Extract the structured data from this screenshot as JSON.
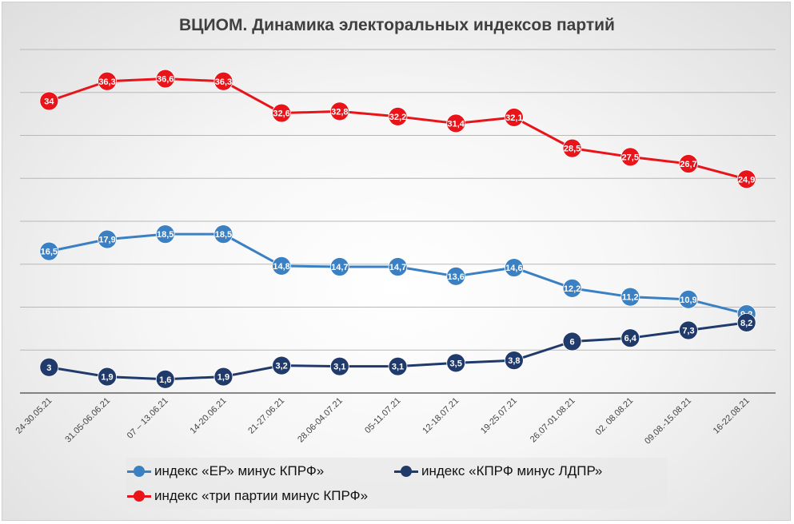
{
  "chart_data": {
    "type": "line",
    "title": "ВЦИОМ. Динамика электоральных индексов партий",
    "categories": [
      "24-30.05.21",
      "31.05-06.06.21",
      "07 – 13.06.21",
      "14-20.06.21",
      "21-27.06.21",
      "28.06-04.07.21",
      "05-11.07.21",
      "12-18.07.21",
      "19-25.07.21",
      "26.07-01.08.21",
      "02. 08.08.21",
      "09.08.-15.08.21",
      "16-22.08.21"
    ],
    "ylim": [
      0,
      40
    ],
    "grid": true,
    "legend_position": "bottom",
    "series": [
      {
        "name": "индекс «ЕР» минус КПРФ»",
        "color": "#3a80c2",
        "values": [
          16.5,
          17.9,
          18.5,
          18.5,
          14.8,
          14.7,
          14.7,
          13.6,
          14.6,
          12.2,
          11.2,
          10.9,
          9.2
        ],
        "labels": [
          "16,5",
          "17,9",
          "18,5",
          "18,5",
          "14,8",
          "14,7",
          "14,7",
          "13,6",
          "14,6",
          "12,2",
          "11,2",
          "10,9",
          "9,2"
        ]
      },
      {
        "name": "индекс «КПРФ минус ЛДПР»",
        "color": "#1f3a6b",
        "values": [
          3,
          1.9,
          1.6,
          1.9,
          3.2,
          3.1,
          3.1,
          3.5,
          3.8,
          6,
          6.4,
          7.3,
          8.2
        ],
        "labels": [
          "3",
          "1,9",
          "1,6",
          "1,9",
          "3,2",
          "3,1",
          "3,1",
          "3,5",
          "3,8",
          "6",
          "6,4",
          "7,3",
          "8,2"
        ]
      },
      {
        "name": "индекс «три партии минус КПРФ»",
        "color": "#e8141a",
        "values": [
          34,
          36.3,
          36.6,
          36.3,
          32.6,
          32.8,
          32.2,
          31.4,
          32.1,
          28.5,
          27.5,
          26.7,
          24.9
        ],
        "labels": [
          "34",
          "36,3",
          "36,6",
          "36,3",
          "32,6",
          "32,8",
          "32,2",
          "31,4",
          "32,1",
          "28,5",
          "27,5",
          "26,7",
          "24,9"
        ]
      }
    ]
  }
}
